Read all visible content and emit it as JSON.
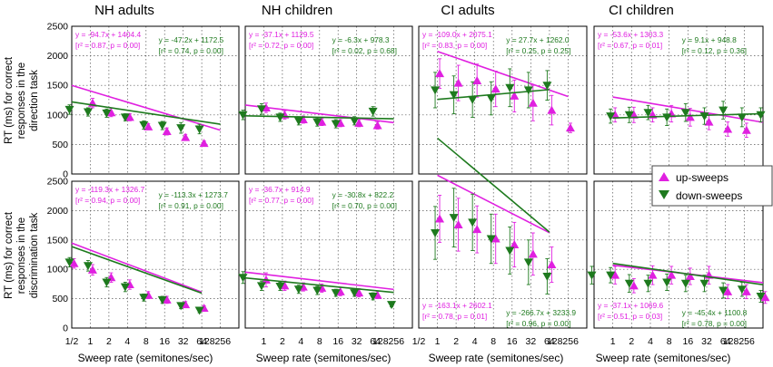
{
  "colors": {
    "up": "#e020e0",
    "down": "#1e7a1e",
    "grid": "#555555"
  },
  "chart_data": {
    "type": "scatter",
    "x_scale": "log2",
    "x_ticks": [
      "1/2",
      "1",
      "2",
      "4",
      "8",
      "16",
      "32",
      "64",
      "128",
      "256"
    ],
    "x_tick_values": [
      0.5,
      1,
      2,
      4,
      8,
      16,
      32,
      64,
      128,
      256
    ],
    "x_tick_labels_last_row": [
      "1/2",
      "1",
      "2",
      "4",
      "8",
      "16",
      "32",
      "64",
      "128256",
      "1",
      "2",
      "4",
      "8",
      "16",
      "32",
      "64",
      "128256",
      "1/2",
      "1",
      "2",
      "4",
      "8",
      "16",
      "32",
      "64",
      "128256",
      "1",
      "2",
      "4",
      "8",
      "16",
      "32",
      "64",
      "128256"
    ],
    "ylim": [
      0,
      2500
    ],
    "y_ticks": [
      0,
      500,
      1000,
      1500,
      2000,
      2500
    ],
    "row_ylabels": [
      [
        "RT (ms) for correct",
        "responses in the",
        "direction task"
      ],
      [
        "RT (ms) for correct",
        "responses in the",
        "discrimination task"
      ]
    ],
    "xlabel": "Sweep rate (semitones/sec)",
    "column_titles": [
      "NH adults",
      "NH children",
      "CI adults",
      "CI children"
    ],
    "legend": {
      "up": "up-sweeps",
      "down": "down-sweeps",
      "placement": "right, between rows"
    },
    "panels": [
      {
        "group": "NH adults",
        "task": "direction",
        "up": {
          "eq": "y = -94.7x + 1404.4",
          "stat": "[r² = 0.87, p = 0.00]",
          "slope": -94.7,
          "intercept": 1404.4,
          "range": [
            0.5,
            128
          ],
          "x": [
            1,
            2,
            4,
            8,
            16,
            32,
            64
          ],
          "y": [
            1200,
            1040,
            960,
            800,
            720,
            620,
            520
          ],
          "err": [
            80,
            70,
            60,
            50,
            60,
            50,
            40
          ]
        },
        "down": {
          "eq": "y = -47.2x + 1172.5",
          "stat": "[r² = 0.74, p = 0.00]",
          "slope": -47.2,
          "intercept": 1172.5,
          "range": [
            0.5,
            128
          ],
          "x": [
            0.5,
            1,
            2,
            4,
            8,
            16,
            32,
            64
          ],
          "y": [
            1090,
            1050,
            1030,
            960,
            830,
            820,
            780,
            760
          ],
          "err": [
            80,
            70,
            70,
            60,
            70,
            70,
            90,
            80
          ]
        }
      },
      {
        "group": "NH children",
        "task": "direction",
        "up": {
          "eq": "y = -37.1x + 1129.5",
          "stat": "[r² = 0.72, p = 0.00]",
          "slope": -37.1,
          "intercept": 1129.5,
          "range": [
            0.5,
            128
          ],
          "x": [
            1,
            2,
            4,
            8,
            16,
            32,
            64
          ],
          "y": [
            1120,
            1000,
            920,
            880,
            860,
            860,
            820
          ],
          "err": [
            80,
            70,
            60,
            60,
            60,
            60,
            60
          ]
        },
        "down": {
          "eq": "y = -6.3x + 978.3",
          "stat": "[r² = 0.02, p = 0.68]",
          "slope": -6.3,
          "intercept": 978.3,
          "range": [
            0.5,
            128
          ],
          "x": [
            0.5,
            1,
            2,
            4,
            8,
            16,
            32,
            64
          ],
          "y": [
            1000,
            1100,
            960,
            900,
            880,
            850,
            900,
            1060
          ],
          "err": [
            80,
            90,
            70,
            70,
            70,
            70,
            70,
            80
          ]
        }
      },
      {
        "group": "CI adults",
        "task": "direction",
        "up": {
          "eq": "y = -109.0x + 2075.1",
          "stat": "[r² = 0.83, p = 0.00]",
          "slope": -109.0,
          "intercept": 2075.1,
          "range": [
            1,
            128
          ],
          "x": [
            1,
            2,
            4,
            8,
            16,
            32,
            64,
            128
          ],
          "y": [
            1700,
            1540,
            1580,
            1440,
            1320,
            1200,
            1080,
            780
          ],
          "err": [
            250,
            300,
            280,
            300,
            270,
            300,
            250,
            80
          ]
        },
        "down": {
          "eq": "y = 27.7x + 1262.0",
          "stat": "[r² = 0.25, p = 0.25]",
          "slope": 27.7,
          "intercept": 1262.0,
          "range": [
            1,
            64
          ],
          "x": [
            1,
            2,
            4,
            8,
            16,
            32,
            64
          ],
          "y": [
            1420,
            1340,
            1260,
            1280,
            1460,
            1420,
            1500
          ],
          "err": [
            300,
            320,
            300,
            280,
            320,
            300,
            250
          ]
        }
      },
      {
        "group": "CI children",
        "task": "direction",
        "up": {
          "eq": "y = -53.6x + 1303.3",
          "stat": "[r² = 0.67, p = 0.01]",
          "slope": -53.6,
          "intercept": 1303.3,
          "range": [
            1,
            256
          ],
          "x": [
            1,
            2,
            4,
            8,
            16,
            32,
            64,
            128
          ],
          "y": [
            1000,
            1000,
            1000,
            1020,
            960,
            880,
            760,
            740
          ],
          "err": [
            120,
            130,
            120,
            140,
            150,
            130,
            120,
            120
          ]
        },
        "down": {
          "eq": "y = 9.1x + 948.8",
          "stat": "[r² = 0.12, p = 0.36]",
          "slope": 9.1,
          "intercept": 948.8,
          "range": [
            1,
            256
          ],
          "x": [
            1,
            2,
            4,
            8,
            16,
            32,
            64,
            128,
            256
          ],
          "y": [
            980,
            1000,
            1040,
            960,
            1040,
            980,
            1080,
            960,
            1000
          ],
          "err": [
            120,
            130,
            120,
            140,
            150,
            140,
            150,
            160,
            120
          ]
        }
      },
      {
        "group": "NH adults",
        "task": "discrimination",
        "up": {
          "eq": "y = -119.3x + 1326.7",
          "stat": "[r² = 0.94, p = 0.00]",
          "slope": -119.3,
          "intercept": 1326.7,
          "range": [
            0.5,
            64
          ],
          "x": [
            0.5,
            1,
            2,
            4,
            8,
            16,
            32,
            64
          ],
          "y": [
            1100,
            990,
            860,
            740,
            560,
            480,
            400,
            340
          ],
          "err": [
            80,
            90,
            80,
            80,
            60,
            60,
            50,
            40
          ]
        },
        "down": {
          "eq": "y = -113.3x + 1273.7",
          "stat": "[r² = 0.91, p = 0.00]",
          "slope": -113.3,
          "intercept": 1273.7,
          "range": [
            0.5,
            64
          ],
          "x": [
            0.5,
            1,
            2,
            4,
            8,
            16,
            32,
            64
          ],
          "y": [
            1120,
            1060,
            780,
            700,
            520,
            480,
            380,
            300
          ],
          "err": [
            80,
            90,
            80,
            80,
            60,
            60,
            50,
            40
          ]
        }
      },
      {
        "group": "NH children",
        "task": "discrimination",
        "up": {
          "eq": "y = -36.7x + 914.9",
          "stat": "[r² = 0.77, p = 0.00]",
          "slope": -36.7,
          "intercept": 914.9,
          "range": [
            0.5,
            128
          ],
          "x": [
            1,
            2,
            4,
            8,
            16,
            32,
            64
          ],
          "y": [
            820,
            720,
            700,
            680,
            620,
            600,
            560
          ],
          "err": [
            120,
            80,
            70,
            70,
            70,
            70,
            60
          ]
        },
        "down": {
          "eq": "y = -30.8x + 822.2",
          "stat": "[r² = 0.70, p = 0.00]",
          "slope": -30.8,
          "intercept": 822.2,
          "range": [
            0.5,
            128
          ],
          "x": [
            0.5,
            1,
            2,
            4,
            8,
            16,
            32,
            64,
            128
          ],
          "y": [
            860,
            720,
            710,
            660,
            640,
            600,
            600,
            540,
            400
          ],
          "err": [
            100,
            80,
            70,
            70,
            70,
            60,
            60,
            60,
            40
          ]
        }
      },
      {
        "group": "CI adults",
        "task": "discrimination",
        "up": {
          "eq": "y = -163.1x + 2602.1",
          "stat": "[r² = 0.78, p = 0.01]",
          "slope": -163.1,
          "intercept": 2602.1,
          "range": [
            1,
            64
          ],
          "x": [
            1,
            2,
            4,
            8,
            16,
            32,
            64
          ],
          "y": [
            1860,
            1760,
            1680,
            1520,
            1420,
            1260,
            1080
          ],
          "err": [
            400,
            450,
            400,
            420,
            380,
            360,
            300
          ]
        },
        "down": {
          "eq": "y = -266.7x + 3233.9",
          "stat": "[r² = 0.96, p = 0.00]",
          "slope": -266.7,
          "intercept": 3233.9,
          "range": [
            1,
            64
          ],
          "x": [
            1,
            2,
            4,
            8,
            16,
            32,
            64
          ],
          "y": [
            1620,
            1880,
            1800,
            1520,
            1320,
            1120,
            880
          ],
          "err": [
            450,
            500,
            480,
            420,
            400,
            380,
            300
          ]
        }
      },
      {
        "group": "CI children",
        "task": "discrimination",
        "up": {
          "eq": "y = -37.1x + 1069.6",
          "stat": "[r² = 0.51, p = 0.03]",
          "slope": -37.1,
          "intercept": 1069.6,
          "range": [
            1,
            256
          ],
          "x": [
            1,
            2,
            4,
            8,
            16,
            32,
            64,
            128,
            256
          ],
          "y": [
            900,
            720,
            900,
            900,
            880,
            900,
            620,
            620,
            520
          ],
          "err": [
            150,
            120,
            160,
            150,
            140,
            150,
            120,
            120,
            100
          ]
        },
        "down": {
          "eq": "y = -45.4x + 1100.8",
          "stat": "[r² = 0.78, p = 0.00]",
          "slope": -45.4,
          "intercept": 1100.8,
          "range": [
            1,
            256
          ],
          "x": [
            0.5,
            1,
            2,
            4,
            8,
            16,
            32,
            64,
            128,
            256
          ],
          "y": [
            900,
            900,
            760,
            760,
            780,
            760,
            760,
            640,
            660,
            540
          ],
          "err": [
            150,
            130,
            150,
            140,
            140,
            140,
            140,
            130,
            120,
            100
          ]
        }
      }
    ]
  }
}
